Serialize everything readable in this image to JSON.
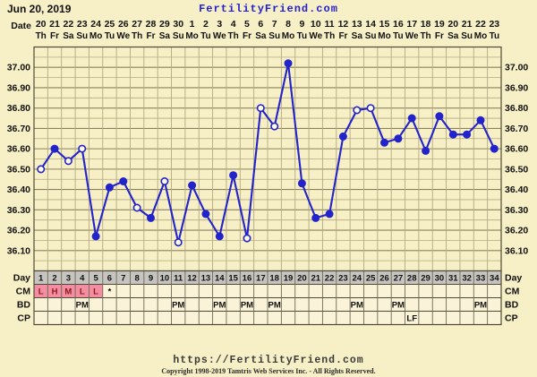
{
  "header": {
    "date": "Jun 20, 2019",
    "site": "FertilityFriend.com"
  },
  "axis": {
    "date_label": "Date",
    "dates": [
      "20",
      "21",
      "22",
      "23",
      "24",
      "25",
      "26",
      "27",
      "28",
      "29",
      "30",
      "1",
      "2",
      "3",
      "4",
      "5",
      "6",
      "7",
      "8",
      "9",
      "10",
      "11",
      "12",
      "13",
      "14",
      "15",
      "16",
      "17",
      "18",
      "19",
      "20",
      "21",
      "22",
      "23"
    ],
    "weekdays": [
      "Th",
      "Fr",
      "Sa",
      "Su",
      "Mo",
      "Tu",
      "We",
      "Th",
      "Fr",
      "Sa",
      "Su",
      "Mo",
      "Tu",
      "We",
      "Th",
      "Fr",
      "Sa",
      "Su",
      "Mo",
      "Tu",
      "We",
      "Th",
      "Fr",
      "Sa",
      "Su",
      "Mo",
      "Tu",
      "We",
      "Th",
      "Fr",
      "Sa",
      "Su",
      "Mo",
      "Tu"
    ]
  },
  "chart_data": {
    "type": "line",
    "title": "Basal body temperature by cycle day",
    "ylim": [
      36.0,
      37.1
    ],
    "yticks": [
      "37.00",
      "36.90",
      "36.80",
      "36.70",
      "36.60",
      "36.50",
      "36.40",
      "36.30",
      "36.20",
      "36.10"
    ],
    "grid": "on",
    "days": 34,
    "points": [
      {
        "day": 1,
        "temp": 36.5,
        "open": true
      },
      {
        "day": 2,
        "temp": 36.6,
        "open": false
      },
      {
        "day": 3,
        "temp": 36.54,
        "open": true
      },
      {
        "day": 4,
        "temp": 36.6,
        "open": true
      },
      {
        "day": 5,
        "temp": 36.17,
        "open": false
      },
      {
        "day": 6,
        "temp": 36.41,
        "open": false
      },
      {
        "day": 7,
        "temp": 36.44,
        "open": false
      },
      {
        "day": 8,
        "temp": 36.31,
        "open": true
      },
      {
        "day": 9,
        "temp": 36.26,
        "open": false
      },
      {
        "day": 10,
        "temp": 36.44,
        "open": true
      },
      {
        "day": 11,
        "temp": 36.14,
        "open": true
      },
      {
        "day": 12,
        "temp": 36.42,
        "open": false
      },
      {
        "day": 13,
        "temp": 36.28,
        "open": false
      },
      {
        "day": 14,
        "temp": 36.17,
        "open": false
      },
      {
        "day": 15,
        "temp": 36.47,
        "open": false
      },
      {
        "day": 16,
        "temp": 36.16,
        "open": true
      },
      {
        "day": 17,
        "temp": 36.8,
        "open": true
      },
      {
        "day": 18,
        "temp": 36.71,
        "open": true
      },
      {
        "day": 19,
        "temp": 37.02,
        "open": false
      },
      {
        "day": 20,
        "temp": 36.43,
        "open": false
      },
      {
        "day": 21,
        "temp": 36.26,
        "open": false
      },
      {
        "day": 22,
        "temp": 36.28,
        "open": false
      },
      {
        "day": 23,
        "temp": 36.66,
        "open": false
      },
      {
        "day": 24,
        "temp": 36.79,
        "open": true
      },
      {
        "day": 25,
        "temp": 36.8,
        "open": true
      },
      {
        "day": 26,
        "temp": 36.63,
        "open": false
      },
      {
        "day": 27,
        "temp": 36.65,
        "open": false
      },
      {
        "day": 28,
        "temp": 36.75,
        "open": false
      },
      {
        "day": 29,
        "temp": 36.59,
        "open": false
      },
      {
        "day": 30,
        "temp": 36.76,
        "open": false
      },
      {
        "day": 31,
        "temp": 36.67,
        "open": false
      },
      {
        "day": 32,
        "temp": 36.67,
        "open": false
      },
      {
        "day": 33,
        "temp": 36.74,
        "open": false
      },
      {
        "day": 34,
        "temp": 36.6,
        "open": false
      }
    ]
  },
  "table": {
    "rows": [
      {
        "label": "Day",
        "type": "day",
        "cells": [
          "1",
          "2",
          "3",
          "4",
          "5",
          "6",
          "7",
          "8",
          "9",
          "10",
          "11",
          "12",
          "13",
          "14",
          "15",
          "16",
          "17",
          "18",
          "19",
          "20",
          "21",
          "22",
          "23",
          "24",
          "25",
          "26",
          "27",
          "28",
          "29",
          "30",
          "31",
          "32",
          "33",
          "34"
        ]
      },
      {
        "label": "CM",
        "type": "cm",
        "cells": [
          "L",
          "H",
          "M",
          "L",
          "L",
          "*",
          "",
          "",
          "",
          "",
          "",
          "",
          "",
          "",
          "",
          "",
          "",
          "",
          "",
          "",
          "",
          "",
          "",
          "",
          "",
          "",
          "",
          "",
          "",
          "",
          "",
          "",
          "",
          ""
        ],
        "pink": [
          true,
          true,
          true,
          true,
          true,
          false,
          false,
          false,
          false,
          false,
          false,
          false,
          false,
          false,
          false,
          false,
          false,
          false,
          false,
          false,
          false,
          false,
          false,
          false,
          false,
          false,
          false,
          false,
          false,
          false,
          false,
          false,
          false,
          false
        ]
      },
      {
        "label": "BD",
        "type": "bd",
        "cells": [
          "",
          "",
          "",
          "PM",
          "",
          "",
          "",
          "",
          "",
          "",
          "PM",
          "",
          "",
          "PM",
          "",
          "PM",
          "",
          "PM",
          "",
          "",
          "",
          "",
          "",
          "PM",
          "",
          "",
          "PM",
          "",
          "",
          "",
          "",
          "",
          "PM",
          ""
        ]
      },
      {
        "label": "CP",
        "type": "cp",
        "cells": [
          "",
          "",
          "",
          "",
          "",
          "",
          "",
          "",
          "",
          "",
          "",
          "",
          "",
          "",
          "",
          "",
          "",
          "",
          "",
          "",
          "",
          "",
          "",
          "",
          "",
          "",
          "",
          "LF",
          "",
          "",
          "",
          "",
          "",
          ""
        ]
      }
    ]
  },
  "footer": {
    "url": "https://FertilityFriend.com",
    "copyright": "Copyright 1998-2019 Tamtris Web Services Inc. - All Rights Reserved."
  },
  "colors": {
    "background": "#f7efc6",
    "cell_background": "#faf3d8",
    "line": "#2323cb",
    "open_point_fill": "#fffce8",
    "grid_minor": "#b3ab7e",
    "grid_major": "#8a825c",
    "border": "#4f4a38",
    "day_row_bg": "#c6c4c1",
    "menses_pink": "#f28da2",
    "cm_letter": "#8b1a1a",
    "site_blue": "#2222cc",
    "text": "#111111"
  }
}
